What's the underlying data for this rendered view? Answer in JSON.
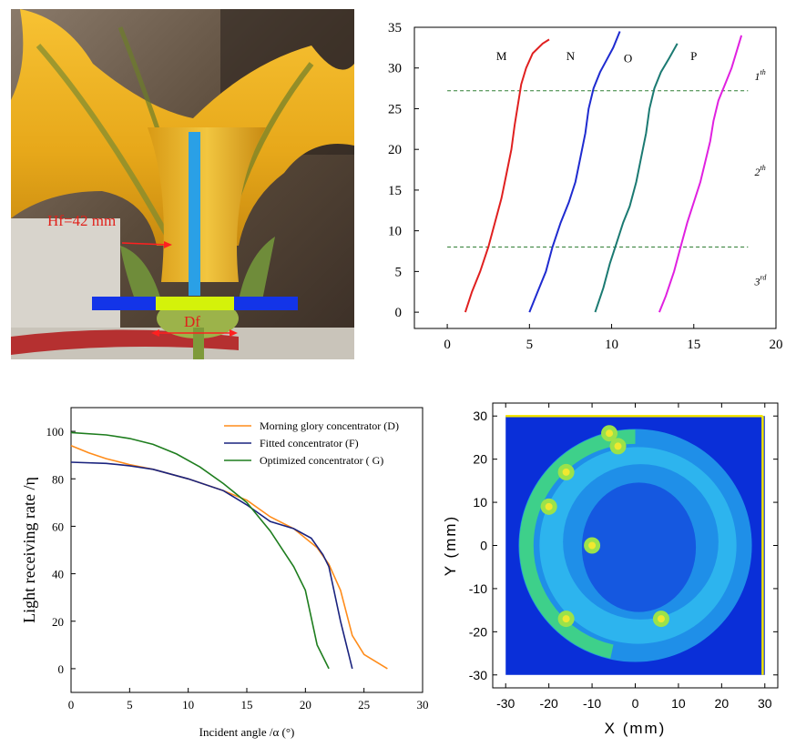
{
  "photo": {
    "hf_label": "Hf=42 mm",
    "df_label": "Df"
  },
  "chart_data": [
    {
      "type": "line",
      "xlim": [
        -2,
        20
      ],
      "ylim": [
        -2,
        35
      ],
      "xticks": [
        0,
        5,
        10,
        15,
        20
      ],
      "yticks": [
        0,
        5,
        10,
        15,
        20,
        25,
        30,
        35
      ],
      "curve_labels": [
        {
          "text": "M",
          "x": 3.3,
          "y": 31
        },
        {
          "text": "N",
          "x": 7.5,
          "y": 31
        },
        {
          "text": "O",
          "x": 11.0,
          "y": 30.7
        },
        {
          "text": "P",
          "x": 15.0,
          "y": 31
        }
      ],
      "region_labels": [
        {
          "base": "1",
          "sup": "th",
          "x": 18.7,
          "y": 28.5
        },
        {
          "base": "2",
          "sup": "th",
          "x": 18.7,
          "y": 16.8
        },
        {
          "base": "3",
          "sup": "rd",
          "x": 18.7,
          "y": 3.3
        }
      ],
      "hlines": [
        27.2,
        8.0
      ],
      "hline_color": "#2e7d32",
      "series": [
        {
          "color": "#e02020",
          "points": [
            [
              1.1,
              0
            ],
            [
              1.5,
              2.5
            ],
            [
              2.0,
              5
            ],
            [
              2.5,
              8
            ],
            [
              2.9,
              11
            ],
            [
              3.3,
              14
            ],
            [
              3.6,
              17
            ],
            [
              3.9,
              20
            ],
            [
              4.1,
              23
            ],
            [
              4.3,
              25.5
            ],
            [
              4.5,
              28
            ],
            [
              4.8,
              30
            ],
            [
              5.2,
              31.8
            ],
            [
              5.8,
              33
            ],
            [
              6.2,
              33.5
            ]
          ]
        },
        {
          "color": "#1f2bd0",
          "points": [
            [
              5.0,
              0
            ],
            [
              5.5,
              2.5
            ],
            [
              6.0,
              5
            ],
            [
              6.4,
              8
            ],
            [
              6.9,
              11
            ],
            [
              7.4,
              13.5
            ],
            [
              7.8,
              16
            ],
            [
              8.1,
              19
            ],
            [
              8.4,
              22
            ],
            [
              8.6,
              25
            ],
            [
              8.9,
              27.5
            ],
            [
              9.3,
              29.5
            ],
            [
              9.7,
              31
            ],
            [
              10.1,
              32.5
            ],
            [
              10.5,
              34.5
            ]
          ]
        },
        {
          "color": "#1b7a72",
          "points": [
            [
              9.0,
              0
            ],
            [
              9.5,
              3
            ],
            [
              9.9,
              6
            ],
            [
              10.3,
              8.5
            ],
            [
              10.7,
              11
            ],
            [
              11.1,
              13
            ],
            [
              11.5,
              16
            ],
            [
              11.8,
              19
            ],
            [
              12.1,
              22
            ],
            [
              12.3,
              25
            ],
            [
              12.6,
              27.5
            ],
            [
              13.0,
              29.5
            ],
            [
              13.5,
              31.2
            ],
            [
              14.0,
              33
            ]
          ]
        },
        {
          "color": "#e020e0",
          "points": [
            [
              12.9,
              0
            ],
            [
              13.3,
              2
            ],
            [
              13.8,
              5
            ],
            [
              14.2,
              8
            ],
            [
              14.6,
              11
            ],
            [
              15.0,
              13.5
            ],
            [
              15.4,
              16
            ],
            [
              15.7,
              18.5
            ],
            [
              16.0,
              21
            ],
            [
              16.2,
              23.5
            ],
            [
              16.5,
              26
            ],
            [
              16.9,
              28
            ],
            [
              17.3,
              30
            ],
            [
              17.6,
              32
            ],
            [
              17.9,
              34
            ]
          ]
        }
      ]
    },
    {
      "type": "line",
      "xlabel": "Incident angle /α (°)",
      "ylabel": "Light receiving rate /η",
      "xlim": [
        0,
        30
      ],
      "ylim": [
        -10,
        110
      ],
      "xticks": [
        0,
        5,
        10,
        15,
        20,
        25,
        30
      ],
      "yticks": [
        0,
        20,
        40,
        60,
        80,
        100
      ],
      "series": [
        {
          "name": "Morning glory concentrator (D)",
          "color": "#ff8c1a",
          "x": [
            0,
            1.5,
            3,
            5,
            7,
            10,
            13,
            15,
            17,
            19,
            21,
            22,
            23,
            24,
            25,
            27
          ],
          "y": [
            94,
            91,
            88.5,
            86,
            84,
            80,
            75,
            71,
            64,
            59,
            51,
            44,
            33,
            14,
            6,
            0
          ]
        },
        {
          "name": "Fitted concentrator (F)",
          "color": "#1a237e",
          "x": [
            0,
            3,
            5,
            7,
            10,
            13,
            15,
            17,
            19,
            20.5,
            21.5,
            22,
            23,
            24
          ],
          "y": [
            87,
            86.5,
            85.5,
            84,
            80,
            75,
            69,
            62,
            59,
            55,
            48,
            43,
            20,
            0
          ]
        },
        {
          "name": "Optimized concentrator ( G)",
          "color": "#1e7d1e",
          "x": [
            0,
            3,
            5,
            7,
            9,
            11,
            13,
            15,
            17,
            19,
            20,
            21,
            22
          ],
          "y": [
            99.5,
            98.5,
            97,
            94.5,
            90.5,
            85,
            78,
            70,
            58,
            43,
            33,
            10,
            0
          ]
        }
      ]
    },
    {
      "type": "heatmap",
      "xlabel": "X (mm)",
      "ylabel": "Y (mm)",
      "xlim": [
        -33,
        33
      ],
      "ylim": [
        -33,
        33
      ],
      "xticks": [
        -30,
        -20,
        -10,
        0,
        10,
        20,
        30
      ],
      "yticks": [
        -30,
        -20,
        -10,
        0,
        10,
        20,
        30
      ],
      "background_color": "#0a2fd8",
      "disk_radius": 27,
      "ring_width": 6,
      "hotspots": [
        [
          -16,
          17
        ],
        [
          -16,
          -17
        ],
        [
          -10,
          0
        ],
        [
          -6,
          26
        ],
        [
          -4,
          23
        ],
        [
          6,
          -17
        ],
        [
          -20,
          9
        ]
      ]
    }
  ]
}
